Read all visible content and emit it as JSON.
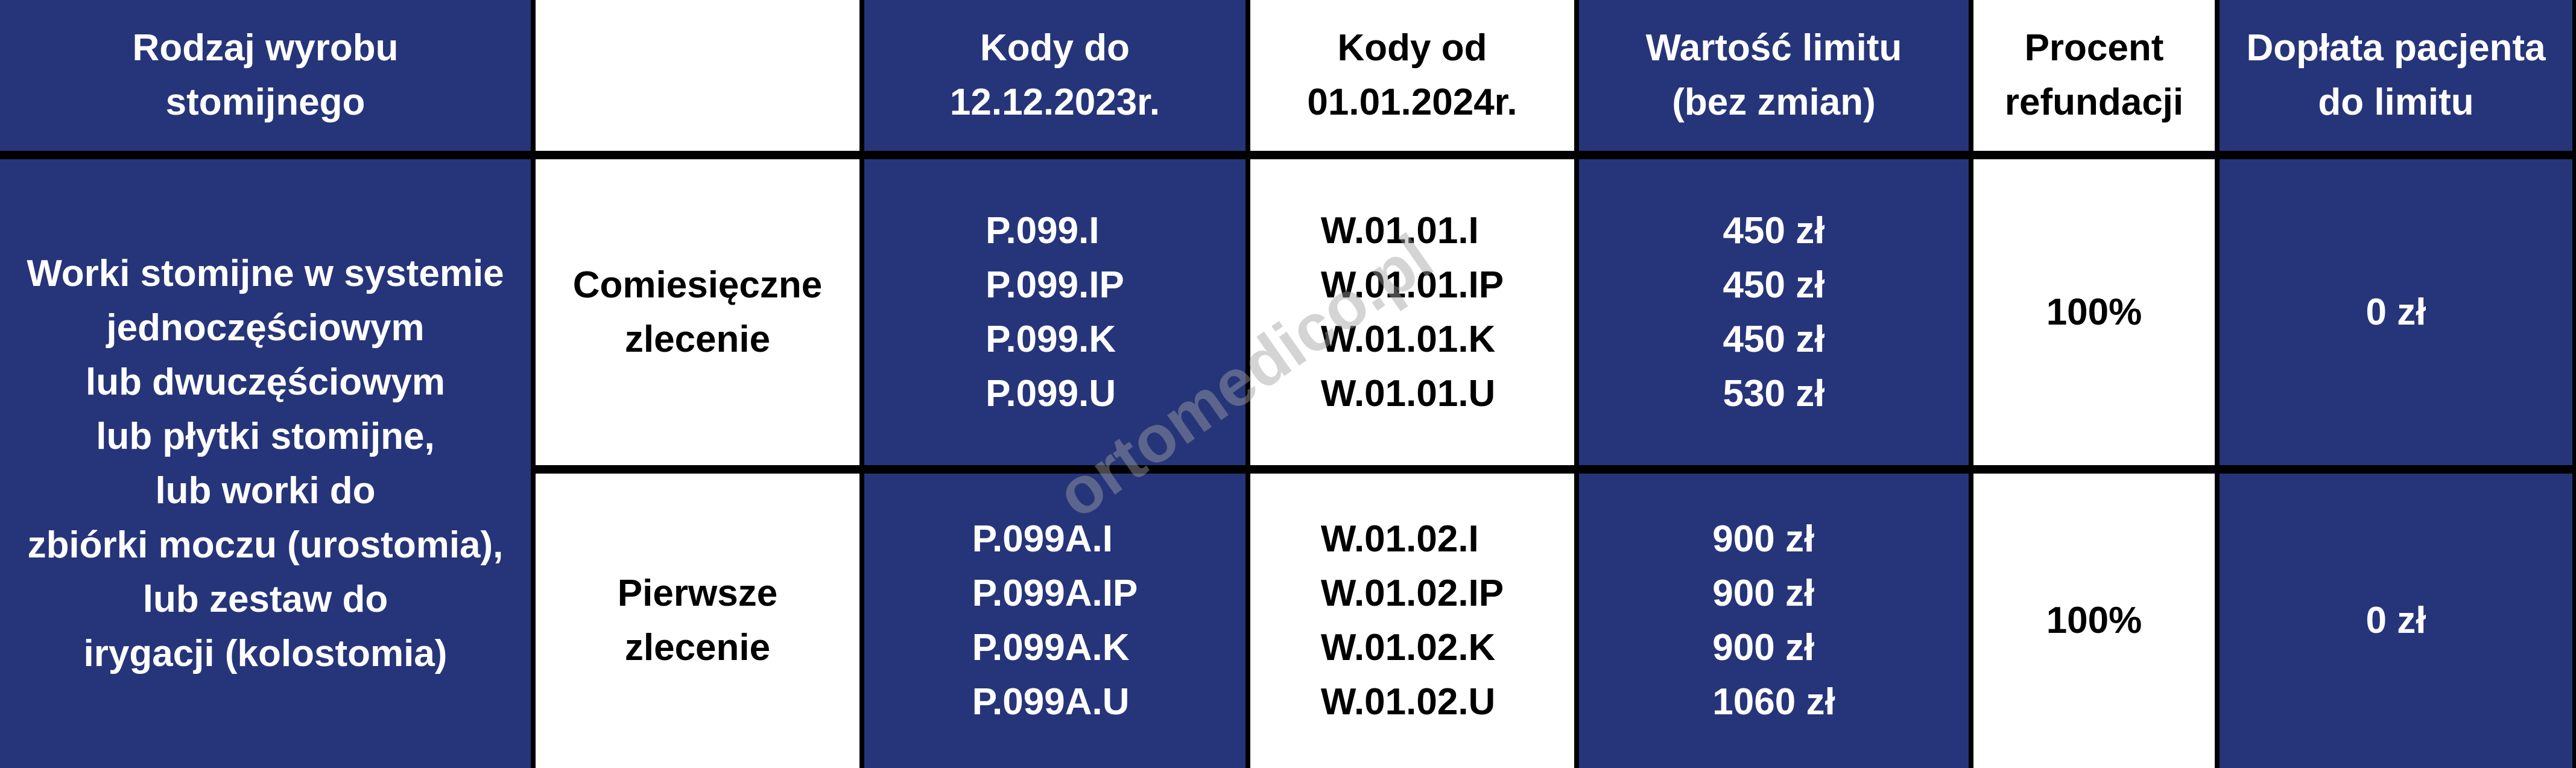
{
  "colors": {
    "navy": "#26357a",
    "white": "#ffffff",
    "grid": "#000000"
  },
  "header": {
    "product_type": "Rodzaj wyrobu\nstomijnego",
    "order_type": "",
    "codes_until": "Kody do\n12.12.2023r.",
    "codes_from": "Kody od\n01.01.2024r.",
    "limit_value": "Wartość limitu\n(bez zmian)",
    "refund_percent": "Procent\nrefundacji",
    "patient_copay": "Dopłata pacjenta\ndo limitu"
  },
  "product_description": "Worki stomijne w systemie\njednoczęściowym\nlub dwuczęściowym\nlub płytki stomijne,\nlub worki do\nzbiórki moczu (urostomia),\nlub zestaw do\nirygacji (kolostomia)",
  "rows": [
    {
      "order": "Comiesięczne\nzlecenie",
      "codes_until": [
        "P.099.I",
        "P.099.IP",
        "P.099.K",
        "P.099.U"
      ],
      "codes_from": [
        "W.01.01.I",
        "W.01.01.IP",
        "W.01.01.K",
        "W.01.01.U"
      ],
      "limits": [
        "450 zł",
        "450 zł",
        "450 zł",
        "530 zł"
      ],
      "refund": "100%",
      "copay": "0 zł"
    },
    {
      "order": "Pierwsze\nzlecenie",
      "codes_until": [
        "P.099A.I",
        "P.099A.IP",
        "P.099A.K",
        "P.099A.U"
      ],
      "codes_from": [
        "W.01.02.I",
        "W.01.02.IP",
        "W.01.02.K",
        "W.01.02.U"
      ],
      "limits": [
        "900 zł",
        "900 zł",
        "900 zł",
        "1060 zł"
      ],
      "refund": "100%",
      "copay": "0 zł"
    }
  ],
  "watermark": "ortomedico.pl"
}
